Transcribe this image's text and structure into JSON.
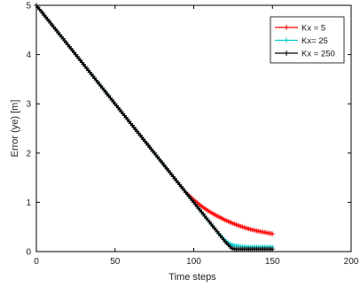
{
  "chart_data": {
    "type": "line",
    "xlabel": "Time steps",
    "ylabel": "Error (ye) [m]",
    "xlim": [
      0,
      200
    ],
    "ylim": [
      0,
      5
    ],
    "xticks": [
      "0",
      "50",
      "100",
      "150",
      "200"
    ],
    "yticks": [
      "0",
      "1",
      "2",
      "3",
      "4",
      "5"
    ],
    "grid": false,
    "legend_position": "top-right",
    "marker": "plus",
    "series": [
      {
        "name": "Kx = 5",
        "color": "#ff0000",
        "x": [
          0,
          10,
          20,
          30,
          40,
          50,
          60,
          70,
          80,
          90,
          95,
          100,
          105,
          110,
          115,
          120,
          125,
          130,
          135,
          140,
          145,
          150
        ],
        "y": [
          5.0,
          4.6,
          4.2,
          3.8,
          3.4,
          3.0,
          2.6,
          2.2,
          1.8,
          1.4,
          1.2,
          1.05,
          0.92,
          0.81,
          0.72,
          0.64,
          0.57,
          0.51,
          0.46,
          0.42,
          0.39,
          0.36
        ]
      },
      {
        "name": "Kx= 25",
        "color": "#00cccc",
        "x": [
          0,
          10,
          20,
          30,
          40,
          50,
          60,
          70,
          80,
          90,
          100,
          110,
          115,
          120,
          122,
          124,
          126,
          128,
          130,
          135,
          140,
          145,
          150
        ],
        "y": [
          5.0,
          4.6,
          4.2,
          3.8,
          3.4,
          3.0,
          2.6,
          2.2,
          1.8,
          1.4,
          1.0,
          0.6,
          0.4,
          0.22,
          0.17,
          0.14,
          0.12,
          0.11,
          0.1,
          0.09,
          0.09,
          0.09,
          0.09
        ]
      },
      {
        "name": "Kx = 250",
        "color": "#000000",
        "x": [
          0,
          10,
          20,
          30,
          40,
          50,
          60,
          70,
          80,
          90,
          100,
          110,
          120,
          124,
          126,
          128,
          130,
          135,
          140,
          145,
          150
        ],
        "y": [
          5.0,
          4.6,
          4.2,
          3.8,
          3.4,
          3.0,
          2.6,
          2.2,
          1.8,
          1.4,
          1.0,
          0.6,
          0.2,
          0.07,
          0.05,
          0.05,
          0.05,
          0.05,
          0.05,
          0.05,
          0.05
        ]
      }
    ]
  }
}
